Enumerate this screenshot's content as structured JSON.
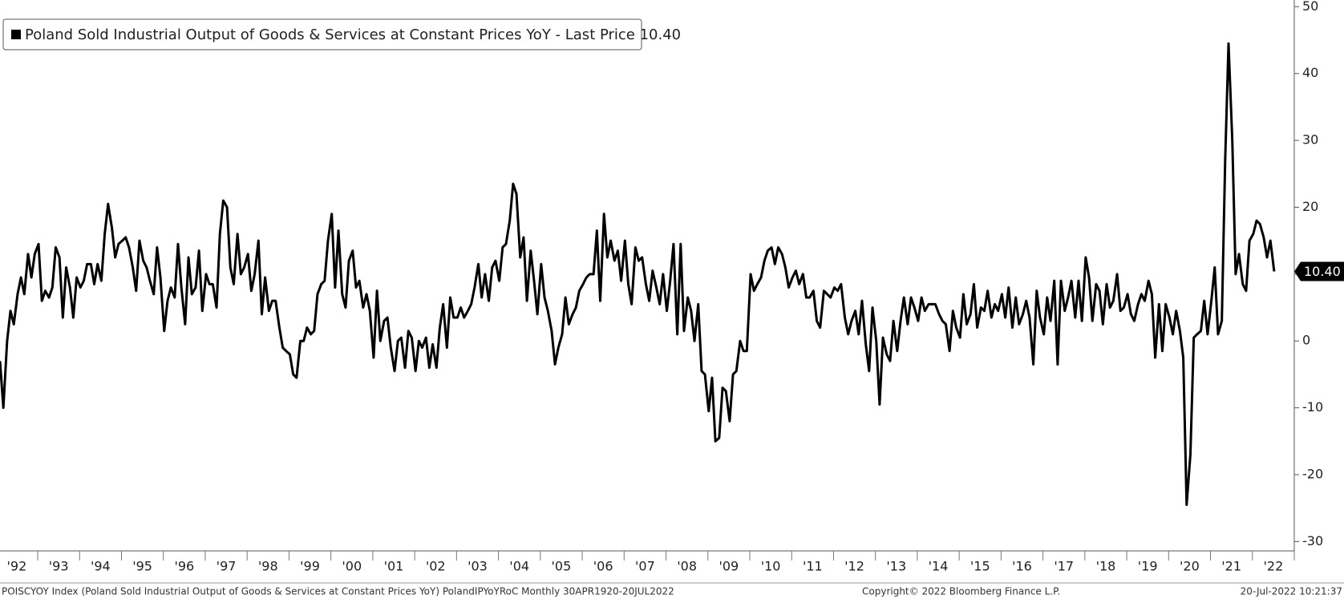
{
  "chart_data": {
    "type": "line",
    "series": [
      {
        "name": "Poland Sold Industrial Output of Goods & Services at Constant Prices YoY - Last Price 10.40",
        "color": "#000000",
        "values": [
          -3,
          -10,
          0,
          4.5,
          2.5,
          7,
          9.5,
          7,
          13,
          9.5,
          13,
          14.5,
          6,
          7.5,
          6.5,
          8,
          14,
          12.5,
          3.5,
          11,
          8,
          3.5,
          9.5,
          8,
          9,
          11.5,
          11.5,
          8.5,
          11.5,
          9,
          16,
          20.5,
          17,
          12.5,
          14.5,
          15,
          15.5,
          14,
          11,
          7.5,
          15,
          12,
          11,
          9,
          7,
          14,
          9.5,
          1.5,
          6,
          8,
          6.5,
          14.5,
          8,
          2.5,
          12.5,
          7,
          8,
          13.5,
          4.5,
          10,
          8.5,
          8.5,
          5,
          16,
          21,
          20,
          11,
          8.5,
          16,
          10,
          11,
          13,
          7.5,
          10,
          15,
          4,
          9.5,
          4.5,
          6,
          6,
          2,
          -1,
          -1.5,
          -2,
          -5,
          -5.5,
          0,
          0,
          2,
          1,
          1.5,
          7,
          8.5,
          9,
          15,
          19,
          8,
          16.5,
          7,
          5,
          12,
          13.5,
          8,
          9,
          5,
          7,
          4.5,
          -2.5,
          7.5,
          0,
          3,
          3.5,
          -1,
          -4.5,
          0,
          0.5,
          -4,
          1.5,
          0.5,
          -4.5,
          0,
          -1,
          0.5,
          -4,
          -0.5,
          -4,
          2,
          5.5,
          -1,
          6.5,
          3.5,
          3.5,
          5,
          3.5,
          4.5,
          5.5,
          8,
          11.5,
          6.5,
          10,
          6,
          11,
          12,
          9,
          14,
          14.5,
          18,
          23.5,
          22,
          12.5,
          15.5,
          6,
          13.5,
          9,
          4,
          11.5,
          6.5,
          4.5,
          1.5,
          -3.5,
          -1,
          1,
          6.5,
          2.5,
          4,
          5,
          7.5,
          8.5,
          9.5,
          10,
          10,
          16.5,
          6,
          19,
          12.5,
          15,
          12,
          13.5,
          9,
          15,
          8.5,
          5.5,
          14,
          12,
          12.5,
          8.5,
          6,
          10.5,
          8,
          5.5,
          10,
          4.5,
          9,
          14.5,
          1,
          14.5,
          1.5,
          6.5,
          4.5,
          0,
          5.5,
          -4.5,
          -5,
          -10.5,
          -5.5,
          -15,
          -14.5,
          -7,
          -7.5,
          -12,
          -5,
          -4.5,
          0,
          -1.5,
          -1.5,
          10,
          7.5,
          8.5,
          9.5,
          12,
          13.5,
          14,
          11.5,
          14,
          13,
          11,
          8,
          9.5,
          10.5,
          8.5,
          10,
          6.5,
          6.5,
          7.5,
          3,
          2,
          7.5,
          7,
          6.5,
          8,
          7.5,
          8.5,
          3.5,
          1,
          3,
          4.5,
          1,
          6,
          -0.5,
          -4.5,
          5,
          0,
          -9.5,
          0.5,
          -2,
          -3,
          3,
          -1.5,
          3,
          6.5,
          2.5,
          6.5,
          5,
          3,
          6.5,
          4.5,
          5.5,
          5.5,
          5.5,
          4,
          3,
          2.5,
          -1.5,
          4.5,
          2,
          0.5,
          7,
          2.5,
          4,
          8.5,
          2,
          5,
          4.5,
          7.5,
          3.5,
          5.5,
          4.5,
          7,
          3.5,
          8,
          2,
          6.5,
          2.5,
          4,
          6,
          3.5,
          -3.5,
          7.5,
          3.5,
          1,
          6.5,
          3,
          9,
          -3.5,
          9,
          4.5,
          6.5,
          9,
          3.5,
          9,
          3,
          12.5,
          9.5,
          3,
          8.5,
          7.5,
          2.5,
          8.5,
          5,
          6,
          10,
          4.5,
          5,
          7,
          4,
          3,
          5.5,
          7,
          6,
          9,
          7,
          -2.5,
          5.5,
          -1.5,
          5.5,
          3.5,
          1,
          4.5,
          1.5,
          -2.5,
          -24.5,
          -17,
          0.5,
          1,
          1.5,
          6,
          1,
          6,
          11,
          1,
          3,
          27,
          44.5,
          30,
          10,
          13,
          8.5,
          7.5,
          15,
          16,
          18,
          17.5,
          15.5,
          12.5,
          15,
          10.4
        ]
      }
    ],
    "x": [
      1992.1,
      1992.18,
      1992.27,
      1992.35,
      1992.43,
      1992.52,
      1992.6,
      1992.68,
      1992.77,
      1992.85,
      1992.93,
      1993.02,
      1993.1,
      1993.18,
      1993.27,
      1993.35,
      1993.43,
      1993.52,
      1993.6,
      1993.68,
      1993.77,
      1993.85,
      1993.93,
      1994.02,
      1994.1,
      1994.18,
      1994.27,
      1994.35,
      1994.43,
      1994.52,
      1994.6,
      1994.68,
      1994.77,
      1994.85,
      1994.93,
      1995.02,
      1995.1,
      1995.18,
      1995.27,
      1995.35,
      1995.43,
      1995.52,
      1995.6,
      1995.68,
      1995.77,
      1995.85,
      1995.93,
      1996.02,
      1996.1,
      1996.18,
      1996.27,
      1996.35,
      1996.43,
      1996.52,
      1996.6,
      1996.68,
      1996.77,
      1996.85,
      1996.93,
      1997.02,
      1997.1,
      1997.18,
      1997.27,
      1997.35,
      1997.43,
      1997.52,
      1997.6,
      1997.68,
      1997.77,
      1997.85,
      1997.93,
      1998.02,
      1998.1,
      1998.18,
      1998.27,
      1998.35,
      1998.43,
      1998.52,
      1998.6,
      1998.68,
      1998.77,
      1998.85,
      1998.93,
      1999.02,
      1999.1,
      1999.18,
      1999.27,
      1999.35,
      1999.43,
      1999.52,
      1999.6,
      1999.68,
      1999.77,
      1999.85,
      1999.93,
      2000.02,
      2000.1,
      2000.18,
      2000.27,
      2000.35,
      2000.43,
      2000.52,
      2000.6,
      2000.68,
      2000.77,
      2000.85,
      2000.93,
      2001.02,
      2001.1,
      2001.18,
      2001.27,
      2001.35,
      2001.43,
      2001.52,
      2001.6,
      2001.68,
      2001.77,
      2001.85,
      2001.93,
      2002.02,
      2002.1,
      2002.18,
      2002.27,
      2002.35,
      2002.43,
      2002.52,
      2002.6,
      2002.68,
      2002.77,
      2002.85,
      2002.93,
      2003.02,
      2003.1,
      2003.18,
      2003.27,
      2003.35,
      2003.43,
      2003.52,
      2003.6,
      2003.68,
      2003.77,
      2003.85,
      2003.93,
      2004.02,
      2004.1,
      2004.18,
      2004.27,
      2004.35,
      2004.43,
      2004.52,
      2004.6,
      2004.68,
      2004.77,
      2004.85,
      2004.93,
      2005.02,
      2005.1,
      2005.18,
      2005.27,
      2005.35,
      2005.43,
      2005.52,
      2005.6,
      2005.68,
      2005.77,
      2005.85,
      2005.93,
      2006.02,
      2006.1,
      2006.18,
      2006.27,
      2006.35,
      2006.43,
      2006.52,
      2006.6,
      2006.68,
      2006.77,
      2006.85,
      2006.93,
      2007.02,
      2007.1,
      2007.18,
      2007.27,
      2007.35,
      2007.43,
      2007.52,
      2007.6,
      2007.68,
      2007.77,
      2007.85,
      2007.93,
      2008.02,
      2008.1,
      2008.18,
      2008.27,
      2008.35,
      2008.43,
      2008.52,
      2008.6,
      2008.68,
      2008.77,
      2008.85,
      2008.93,
      2009.02,
      2009.1,
      2009.18,
      2009.27,
      2009.35,
      2009.43,
      2009.52,
      2009.6,
      2009.68,
      2009.77,
      2009.85,
      2009.93,
      2010.02,
      2010.1,
      2010.18,
      2010.27,
      2010.35,
      2010.43,
      2010.52,
      2010.6,
      2010.68,
      2010.77,
      2010.85,
      2010.93,
      2011.02,
      2011.1,
      2011.18,
      2011.27,
      2011.35,
      2011.43,
      2011.52,
      2011.6,
      2011.68,
      2011.77,
      2011.85,
      2011.93,
      2012.02,
      2012.1,
      2012.18,
      2012.27,
      2012.35,
      2012.43,
      2012.52,
      2012.6,
      2012.68,
      2012.77,
      2012.85,
      2012.93,
      2013.02,
      2013.1,
      2013.18,
      2013.27,
      2013.35,
      2013.43,
      2013.52,
      2013.6,
      2013.68,
      2013.77,
      2013.85,
      2013.93,
      2014.02,
      2014.1,
      2014.18,
      2014.27,
      2014.35,
      2014.43,
      2014.52,
      2014.6,
      2014.68,
      2014.77,
      2014.85,
      2014.93,
      2015.02,
      2015.1,
      2015.18,
      2015.27,
      2015.35,
      2015.43,
      2015.52,
      2015.6,
      2015.68,
      2015.77,
      2015.85,
      2015.93,
      2016.02,
      2016.1,
      2016.18,
      2016.27,
      2016.35,
      2016.43,
      2016.52,
      2016.6,
      2016.68,
      2016.77,
      2016.85,
      2016.93,
      2017.02,
      2017.1,
      2017.18,
      2017.27,
      2017.35,
      2017.43,
      2017.52,
      2017.6,
      2017.68,
      2017.77,
      2017.85,
      2017.93,
      2018.02,
      2018.1,
      2018.18,
      2018.27,
      2018.35,
      2018.43,
      2018.52,
      2018.6,
      2018.68,
      2018.77,
      2018.85,
      2018.93,
      2019.02,
      2019.1,
      2019.18,
      2019.27,
      2019.35,
      2019.43,
      2019.52,
      2019.6,
      2019.68,
      2019.77,
      2019.85,
      2019.93,
      2020.02,
      2020.1,
      2020.18,
      2020.27,
      2020.35,
      2020.43,
      2020.52,
      2020.6,
      2020.68,
      2020.77,
      2020.85,
      2020.93,
      2021.02,
      2021.1,
      2021.18,
      2021.27,
      2021.35,
      2021.43,
      2021.52,
      2021.6,
      2021.68,
      2021.77,
      2021.85,
      2021.93,
      2022.02,
      2022.1,
      2022.18,
      2022.27,
      2022.35,
      2022.43,
      2022.52
    ],
    "last_price_tag": "10.40",
    "xlim": [
      1992.1,
      2023.0
    ],
    "xticks": [
      {
        "value": 1992.5,
        "label": "'92"
      },
      {
        "value": 1993.5,
        "label": "'93"
      },
      {
        "value": 1994.5,
        "label": "'94"
      },
      {
        "value": 1995.5,
        "label": "'95"
      },
      {
        "value": 1996.5,
        "label": "'96"
      },
      {
        "value": 1997.5,
        "label": "'97"
      },
      {
        "value": 1998.5,
        "label": "'98"
      },
      {
        "value": 1999.5,
        "label": "'99"
      },
      {
        "value": 2000.5,
        "label": "'00"
      },
      {
        "value": 2001.5,
        "label": "'01"
      },
      {
        "value": 2002.5,
        "label": "'02"
      },
      {
        "value": 2003.5,
        "label": "'03"
      },
      {
        "value": 2004.5,
        "label": "'04"
      },
      {
        "value": 2005.5,
        "label": "'05"
      },
      {
        "value": 2006.5,
        "label": "'06"
      },
      {
        "value": 2007.5,
        "label": "'07"
      },
      {
        "value": 2008.5,
        "label": "'08"
      },
      {
        "value": 2009.5,
        "label": "'09"
      },
      {
        "value": 2010.5,
        "label": "'10"
      },
      {
        "value": 2011.5,
        "label": "'11"
      },
      {
        "value": 2012.5,
        "label": "'12"
      },
      {
        "value": 2013.5,
        "label": "'13"
      },
      {
        "value": 2014.5,
        "label": "'14"
      },
      {
        "value": 2015.5,
        "label": "'15"
      },
      {
        "value": 2016.5,
        "label": "'16"
      },
      {
        "value": 2017.5,
        "label": "'17"
      },
      {
        "value": 2018.5,
        "label": "'18"
      },
      {
        "value": 2019.5,
        "label": "'19"
      },
      {
        "value": 2020.5,
        "label": "'20"
      },
      {
        "value": 2021.5,
        "label": "'21"
      },
      {
        "value": 2022.5,
        "label": "'22"
      }
    ],
    "ylim": [
      -31.4,
      51
    ],
    "yticks": [
      -30,
      -20,
      -10,
      0,
      10,
      20,
      30,
      40,
      50
    ],
    "grid": false,
    "legend": "top-left",
    "footer_left": "POISCYOY Index (Poland Sold Industrial Output of Goods & Services at Constant Prices YoY) PolandIPYoYRoC  Monthly 30APR1920-20JUL2022",
    "footer_center": "Copyright© 2022 Bloomberg Finance L.P.",
    "footer_right": "20-Jul-2022 10:21:37"
  }
}
